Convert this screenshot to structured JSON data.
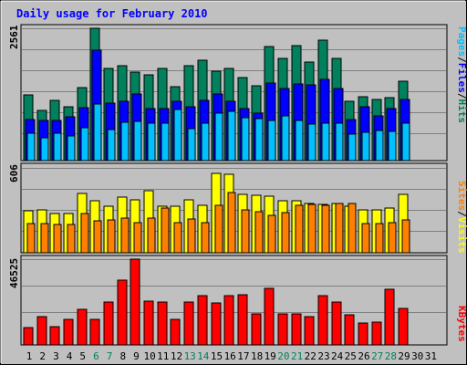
{
  "chart_data": {
    "type": "bar",
    "title": "Daily usage for February 2010",
    "x": [
      "1",
      "2",
      "3",
      "4",
      "5",
      "6",
      "7",
      "8",
      "9",
      "10",
      "11",
      "12",
      "13",
      "14",
      "15",
      "16",
      "17",
      "18",
      "19",
      "20",
      "21",
      "22",
      "23",
      "24",
      "25",
      "26",
      "27",
      "28",
      "29",
      "30",
      "31"
    ],
    "weekend_days": [
      "6",
      "7",
      "13",
      "14",
      "20",
      "21",
      "27",
      "28"
    ],
    "panels": [
      {
        "name": "hits-files-pages",
        "ymax_label": "2561",
        "ymax": 2561,
        "legend": [
          "Pages",
          "Files",
          "Hits"
        ],
        "series": [
          {
            "name": "Hits",
            "color": "#00805c",
            "values": [
              1270,
              980,
              1160,
              1040,
              1410,
              2561,
              1780,
              1840,
              1720,
              1660,
              1790,
              1430,
              1830,
              1940,
              1730,
              1780,
              1600,
              1450,
              2210,
              1970,
              2220,
              1910,
              2330,
              1970,
              1140,
              1230,
              1190,
              1210,
              1540
            ]
          },
          {
            "name": "Files",
            "color": "#0000ff",
            "values": [
              800,
              780,
              780,
              840,
              1020,
              2130,
              1120,
              1140,
              1290,
              1010,
              1010,
              1140,
              1040,
              1160,
              1290,
              1150,
              1010,
              910,
              1500,
              1390,
              1480,
              1460,
              1570,
              1400,
              800,
              1040,
              860,
              1000,
              1190
            ]
          },
          {
            "name": "Pages",
            "color": "#00c0ff",
            "values": [
              530,
              440,
              530,
              480,
              640,
              1100,
              600,
              740,
              760,
              730,
              730,
              990,
              620,
              730,
              920,
              950,
              830,
              820,
              780,
              860,
              780,
              710,
              730,
              720,
              520,
              540,
              580,
              570,
              720
            ]
          }
        ]
      },
      {
        "name": "visits-sites",
        "ymax_label": "606",
        "ymax": 606,
        "legend": [
          "Sites",
          "Visits"
        ],
        "series": [
          {
            "name": "Visits",
            "color": "#ffff00",
            "values": [
              300,
              305,
              280,
              280,
              425,
              370,
              335,
              395,
              380,
              440,
              335,
              335,
              375,
              340,
              565,
              560,
              420,
              410,
              405,
              370,
              370,
              355,
              345,
              355,
              335,
              305,
              305,
              320,
              420
            ]
          },
          {
            "name": "Sites",
            "color": "#ff8000",
            "values": [
              210,
              210,
              200,
              200,
              280,
              230,
              235,
              245,
              215,
              250,
              320,
              215,
              240,
              215,
              340,
              430,
              305,
              295,
              265,
              285,
              340,
              345,
              340,
              350,
              350,
              210,
              210,
              215,
              235
            ]
          }
        ]
      },
      {
        "name": "kbytes",
        "ymax_label": "46525",
        "ymax": 46525,
        "legend": [
          "KBytes"
        ],
        "series": [
          {
            "name": "KBytes",
            "color": "#ff0000",
            "values": [
              9500,
              15500,
              10000,
              14000,
              19500,
              14000,
              23500,
              35000,
              46525,
              24000,
              23500,
              14000,
              23500,
              26500,
              23000,
              26500,
              27000,
              17000,
              30500,
              17000,
              17000,
              15500,
              26500,
              23500,
              16500,
              12000,
              12500,
              30000,
              20000
            ]
          }
        ]
      }
    ]
  },
  "colors": {
    "background": "#c0c0c0",
    "plot_bg": "#c0c0c0",
    "title": "#0000ff",
    "weekday_label": "#000000",
    "weekend_label": "#00805c",
    "grid": "#808080"
  }
}
